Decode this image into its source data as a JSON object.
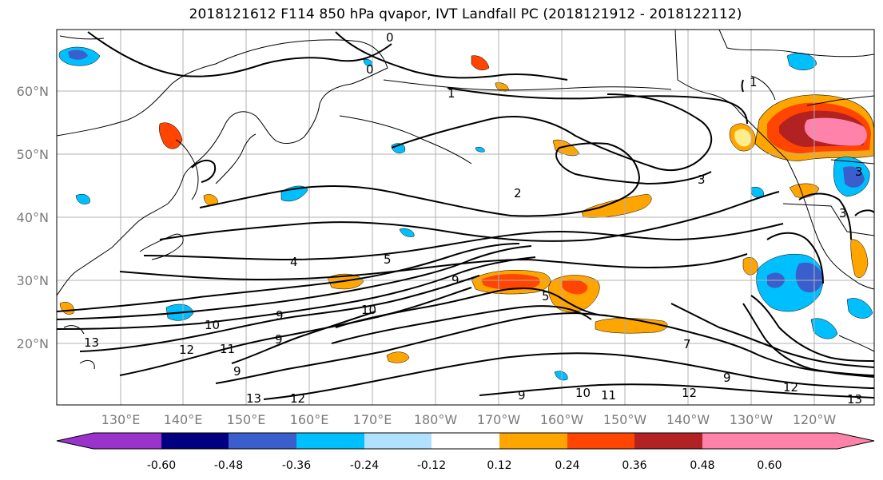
{
  "title": "2018121612 F114 850 hPa qvapor, IVT Landfall PC (2018121912 - 2018122112)",
  "lat_labels": [
    "60°N",
    "50°N",
    "40°N",
    "30°N",
    "20°N"
  ],
  "lon_labels": [
    "130°E",
    "140°E",
    "150°E",
    "160°E",
    "170°E",
    "180°W",
    "170°W",
    "160°W",
    "150°W",
    "140°W",
    "130°W",
    "120°W"
  ],
  "colorbar": {
    "colors": [
      "#9933cc",
      "#000080",
      "#3a5fcd",
      "#00bfff",
      "#b0e2ff",
      "#ffffff",
      "#ffec8b",
      "#ffa500",
      "#ff4500",
      "#b22222",
      "#ff82ab"
    ],
    "tick_labels": [
      "-0.60",
      "-0.48",
      "-0.36",
      "-0.24",
      "-0.12",
      "0.12",
      "0.24",
      "0.36",
      "0.48",
      "0.60"
    ]
  },
  "contour_labels": [
    "0",
    "0",
    "1",
    "2",
    "3",
    "4",
    "5",
    "5",
    "9",
    "10",
    "10",
    "9",
    "9",
    "12",
    "11",
    "9",
    "13",
    "12",
    "13",
    "9",
    "11",
    "12",
    "10",
    "9",
    "12",
    "13",
    "7",
    "3",
    "3",
    "1"
  ]
}
